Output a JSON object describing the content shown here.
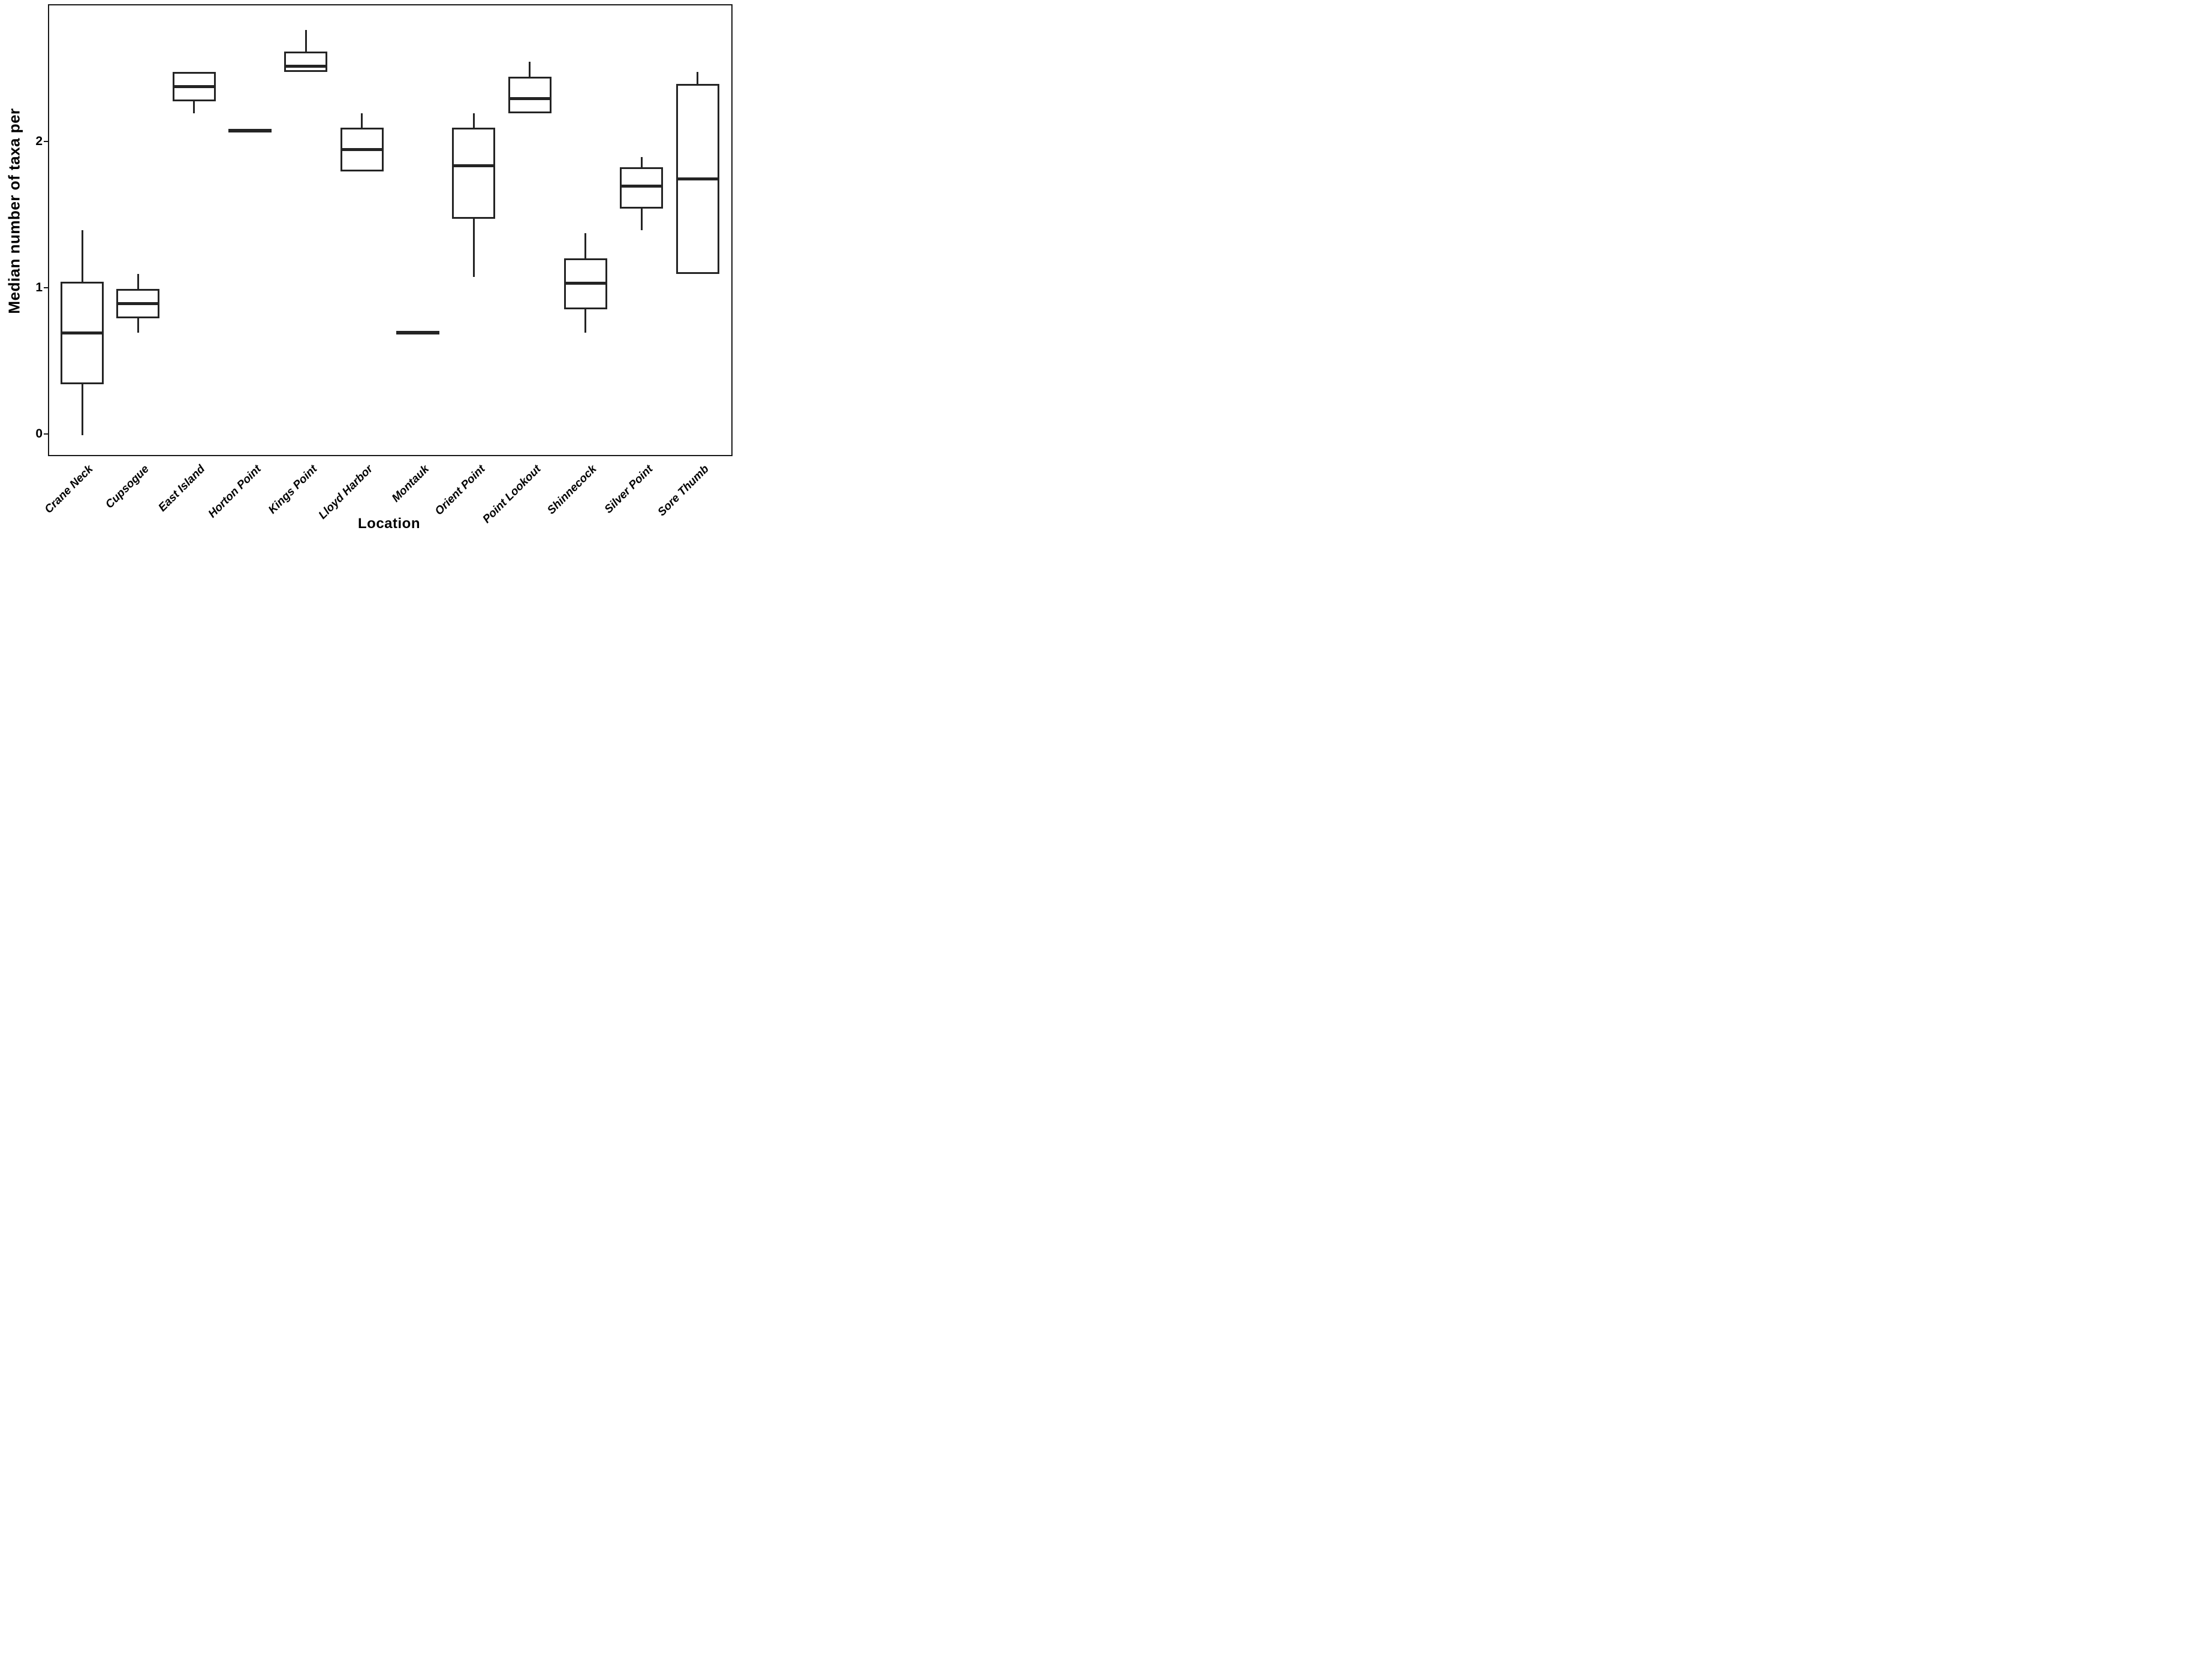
{
  "figure": {
    "ylabel": "Median number of taxa per",
    "xlabel": "Location"
  },
  "chart_data": {
    "type": "boxplot",
    "title": "",
    "xlabel": "Location",
    "ylabel": "Median number of taxa per",
    "ylim": [
      -0.13,
      2.94
    ],
    "y_ticks": [
      0,
      1,
      2
    ],
    "grid": false,
    "legend": false,
    "line_color": "#242424",
    "box_fill": "#ffffff",
    "categories": [
      "Crane Neck",
      "Cupsogue",
      "East Island",
      "Horton Point",
      "Kings Point",
      "Lloyd Harbor",
      "Montauk",
      "Orient Point",
      "Point Lookout",
      "Shinnecock",
      "Silver Point",
      "Sore Thumb"
    ],
    "series": [
      {
        "location": "Crane Neck",
        "min": 0.0,
        "q1": 0.35,
        "median": 0.7,
        "q3": 1.05,
        "max": 1.4
      },
      {
        "location": "Cupsogue",
        "min": 0.7,
        "q1": 0.8,
        "median": 0.9,
        "q3": 1.0,
        "max": 1.1
      },
      {
        "location": "East Island",
        "min": 2.2,
        "q1": 2.28,
        "median": 2.38,
        "q3": 2.48,
        "max": 2.48
      },
      {
        "location": "Horton Point",
        "min": 2.08,
        "q1": 2.08,
        "median": 2.08,
        "q3": 2.08,
        "max": 2.08
      },
      {
        "location": "Kings Point",
        "min": 2.48,
        "q1": 2.48,
        "median": 2.52,
        "q3": 2.62,
        "max": 2.77
      },
      {
        "location": "Lloyd Harbor",
        "min": 1.8,
        "q1": 1.8,
        "median": 1.95,
        "q3": 2.1,
        "max": 2.2
      },
      {
        "location": "Montauk",
        "min": 0.7,
        "q1": 0.7,
        "median": 0.7,
        "q3": 0.7,
        "max": 0.7
      },
      {
        "location": "Orient Point",
        "min": 1.08,
        "q1": 1.48,
        "median": 1.84,
        "q3": 2.1,
        "max": 2.2
      },
      {
        "location": "Point Lookout",
        "min": 2.2,
        "q1": 2.2,
        "median": 2.3,
        "q3": 2.45,
        "max": 2.55
      },
      {
        "location": "Shinnecock",
        "min": 0.7,
        "q1": 0.86,
        "median": 1.04,
        "q3": 1.21,
        "max": 1.38
      },
      {
        "location": "Silver Point",
        "min": 1.4,
        "q1": 1.55,
        "median": 1.7,
        "q3": 1.83,
        "max": 1.9
      },
      {
        "location": "Sore Thumb",
        "min": 1.1,
        "q1": 1.1,
        "median": 1.75,
        "q3": 2.4,
        "max": 2.48
      }
    ]
  }
}
